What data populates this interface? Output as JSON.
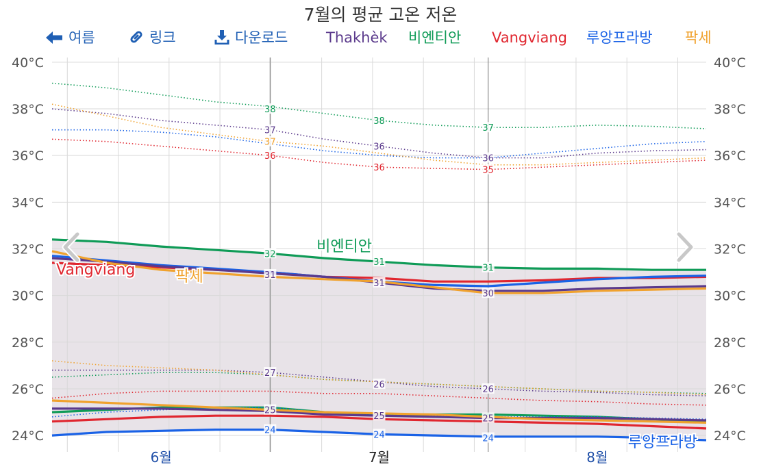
{
  "title": "7월의 평균 고온 저온",
  "toolbar": {
    "back_label": "여름",
    "link_label": "링크",
    "download_label": "다운로드"
  },
  "legend": [
    {
      "name": "Thakhèk",
      "color": "#5b3a8c"
    },
    {
      "name": "비엔티안",
      "color": "#0f9b57"
    },
    {
      "name": "Vangviang",
      "color": "#e0262f"
    },
    {
      "name": "루앙프라방",
      "color": "#1a62e6"
    },
    {
      "name": "팍세",
      "color": "#f0a22e"
    }
  ],
  "colors": {
    "band_fill": "#e5e0e6",
    "axis_text": "#555555",
    "month_blue": "#1f4fa8",
    "month_current": "#222222",
    "grid": "#d9d9d9",
    "divider": "#888888"
  },
  "icons": {
    "back": "arrow-left-icon",
    "link": "link-icon",
    "download": "download-icon",
    "prev": "chevron-left-icon",
    "next": "chevron-right-icon"
  },
  "chart_data": {
    "type": "line",
    "x_ticks": [
      "6월",
      "7월",
      "8월"
    ],
    "y_ticks": [
      "24°C",
      "26°C",
      "28°C",
      "30°C",
      "32°C",
      "34°C",
      "36°C",
      "38°C",
      "40°C"
    ],
    "ylim": [
      23.3,
      40.2
    ],
    "x_range": [
      0,
      3
    ],
    "grid": true,
    "month_boundaries": [
      1,
      2
    ],
    "inline_labels": [
      {
        "series": "Vangviang",
        "text": "Vangviang",
        "x": 0.2,
        "y": 30.9
      },
      {
        "series": "팍세",
        "text": "팍세",
        "x": 0.63,
        "y": 30.6
      },
      {
        "series": "비엔티안",
        "text": "비엔티안",
        "x": 1.34,
        "y": 31.9
      },
      {
        "series": "루앙프라방",
        "text": "루앙프라방",
        "x": 2.8,
        "y": 23.5
      }
    ],
    "x": [
      0,
      0.25,
      0.5,
      0.75,
      1.0,
      1.25,
      1.5,
      1.75,
      2.0,
      2.25,
      2.5,
      2.75,
      3.0
    ],
    "series": [
      {
        "name": "비엔티안",
        "color": "#0f9b57",
        "high": [
          32.4,
          32.3,
          32.1,
          31.95,
          31.8,
          31.6,
          31.45,
          31.3,
          31.2,
          31.15,
          31.15,
          31.1,
          31.1
        ],
        "low": [
          25.0,
          25.1,
          25.2,
          25.2,
          25.2,
          25.0,
          24.9,
          24.9,
          24.9,
          24.85,
          24.8,
          24.7,
          24.6
        ],
        "record_high": [
          39.1,
          38.9,
          38.6,
          38.3,
          38.1,
          37.8,
          37.5,
          37.3,
          37.2,
          37.2,
          37.3,
          37.25,
          37.15
        ],
        "record_low": [
          26.5,
          26.6,
          26.7,
          26.7,
          26.6,
          26.4,
          26.3,
          26.2,
          26.1,
          26.0,
          25.9,
          25.85,
          25.8
        ]
      },
      {
        "name": "Vangviang",
        "color": "#e0262f",
        "high": [
          31.4,
          31.3,
          31.2,
          31.1,
          31.0,
          30.8,
          30.75,
          30.6,
          30.6,
          30.65,
          30.75,
          30.75,
          30.8
        ],
        "low": [
          24.6,
          24.7,
          24.8,
          24.85,
          24.85,
          24.8,
          24.7,
          24.65,
          24.6,
          24.55,
          24.5,
          24.4,
          24.3
        ],
        "record_high": [
          36.7,
          36.6,
          36.4,
          36.2,
          36.0,
          35.7,
          35.5,
          35.45,
          35.4,
          35.5,
          35.6,
          35.7,
          35.8
        ],
        "record_low": [
          25.6,
          25.8,
          25.9,
          25.9,
          25.9,
          25.8,
          25.8,
          25.7,
          25.6,
          25.5,
          25.45,
          25.35,
          25.3
        ]
      },
      {
        "name": "루앙프라방",
        "color": "#1a62e6",
        "high": [
          31.7,
          31.5,
          31.3,
          31.15,
          31.0,
          30.8,
          30.6,
          30.45,
          30.4,
          30.55,
          30.7,
          30.8,
          30.85
        ],
        "low": [
          24.0,
          24.15,
          24.2,
          24.25,
          24.25,
          24.15,
          24.05,
          24.0,
          23.95,
          23.95,
          23.95,
          23.9,
          23.8
        ],
        "record_high": [
          37.1,
          37.1,
          37.0,
          36.8,
          36.5,
          36.2,
          36.0,
          35.9,
          35.9,
          36.1,
          36.3,
          36.5,
          36.6
        ],
        "record_low": [
          24.8,
          25.0,
          25.1,
          25.2,
          25.2,
          25.0,
          24.9,
          24.85,
          24.8,
          24.8,
          24.8,
          24.75,
          24.7
        ]
      },
      {
        "name": "Thakhèk",
        "color": "#5b3a8c",
        "high": [
          31.6,
          31.45,
          31.25,
          31.1,
          30.95,
          30.8,
          30.55,
          30.3,
          30.2,
          30.2,
          30.3,
          30.35,
          30.4
        ],
        "low": [
          25.15,
          25.15,
          25.15,
          25.1,
          25.05,
          24.9,
          24.85,
          24.8,
          24.75,
          24.75,
          24.75,
          24.7,
          24.65
        ],
        "record_high": [
          38.0,
          37.8,
          37.5,
          37.3,
          37.1,
          36.7,
          36.4,
          36.1,
          35.9,
          35.9,
          36.1,
          36.2,
          36.25
        ],
        "record_low": [
          26.8,
          26.8,
          26.8,
          26.8,
          26.7,
          26.5,
          26.3,
          26.1,
          26.0,
          25.9,
          25.85,
          25.75,
          25.7
        ]
      },
      {
        "name": "팍세",
        "color": "#f0a22e",
        "high": [
          31.9,
          31.4,
          31.1,
          30.95,
          30.8,
          30.7,
          30.6,
          30.35,
          30.1,
          30.1,
          30.2,
          30.25,
          30.3
        ],
        "low": [
          25.5,
          25.4,
          25.3,
          25.2,
          25.1,
          25.0,
          24.95,
          24.9,
          24.8,
          24.7,
          24.65,
          24.6,
          24.55
        ],
        "record_high": [
          38.2,
          37.7,
          37.2,
          36.9,
          36.6,
          36.4,
          36.1,
          35.8,
          35.6,
          35.6,
          35.7,
          35.8,
          35.9
        ],
        "record_low": [
          27.2,
          27.0,
          26.9,
          26.8,
          26.6,
          26.4,
          26.3,
          26.2,
          26.1,
          26.0,
          25.9,
          25.85,
          25.75
        ]
      }
    ],
    "point_labels": [
      {
        "text": "38",
        "x": 1.0,
        "y": 38.0,
        "color": "#0f9b57"
      },
      {
        "text": "37",
        "x": 1.0,
        "y": 37.1,
        "color": "#5b3a8c"
      },
      {
        "text": "37",
        "x": 1.0,
        "y": 36.6,
        "color": "#f0a22e"
      },
      {
        "text": "36",
        "x": 1.0,
        "y": 36.0,
        "color": "#e0262f"
      },
      {
        "text": "38",
        "x": 1.5,
        "y": 37.5,
        "color": "#0f9b57"
      },
      {
        "text": "36",
        "x": 1.5,
        "y": 36.4,
        "color": "#5b3a8c"
      },
      {
        "text": "36",
        "x": 1.5,
        "y": 35.5,
        "color": "#e0262f"
      },
      {
        "text": "37",
        "x": 2.0,
        "y": 37.2,
        "color": "#0f9b57"
      },
      {
        "text": "36",
        "x": 2.0,
        "y": 35.9,
        "color": "#5b3a8c"
      },
      {
        "text": "35",
        "x": 2.0,
        "y": 35.4,
        "color": "#e0262f"
      },
      {
        "text": "32",
        "x": 1.0,
        "y": 31.8,
        "color": "#0f9b57"
      },
      {
        "text": "31",
        "x": 1.0,
        "y": 30.9,
        "color": "#5b3a8c"
      },
      {
        "text": "31",
        "x": 1.5,
        "y": 31.45,
        "color": "#0f9b57"
      },
      {
        "text": "31",
        "x": 1.5,
        "y": 30.55,
        "color": "#5b3a8c"
      },
      {
        "text": "31",
        "x": 2.0,
        "y": 31.2,
        "color": "#0f9b57"
      },
      {
        "text": "30",
        "x": 2.0,
        "y": 30.1,
        "color": "#5b3a8c"
      },
      {
        "text": "27",
        "x": 1.0,
        "y": 26.7,
        "color": "#5b3a8c"
      },
      {
        "text": "25",
        "x": 1.0,
        "y": 25.1,
        "color": "#5b3a8c"
      },
      {
        "text": "24",
        "x": 1.0,
        "y": 24.25,
        "color": "#1a62e6"
      },
      {
        "text": "26",
        "x": 1.5,
        "y": 26.2,
        "color": "#5b3a8c"
      },
      {
        "text": "25",
        "x": 1.5,
        "y": 24.85,
        "color": "#5b3a8c"
      },
      {
        "text": "24",
        "x": 1.5,
        "y": 24.05,
        "color": "#1a62e6"
      },
      {
        "text": "26",
        "x": 2.0,
        "y": 26.0,
        "color": "#5b3a8c"
      },
      {
        "text": "25",
        "x": 2.0,
        "y": 24.75,
        "color": "#5b3a8c"
      },
      {
        "text": "24",
        "x": 2.0,
        "y": 23.9,
        "color": "#1a62e6"
      }
    ]
  }
}
